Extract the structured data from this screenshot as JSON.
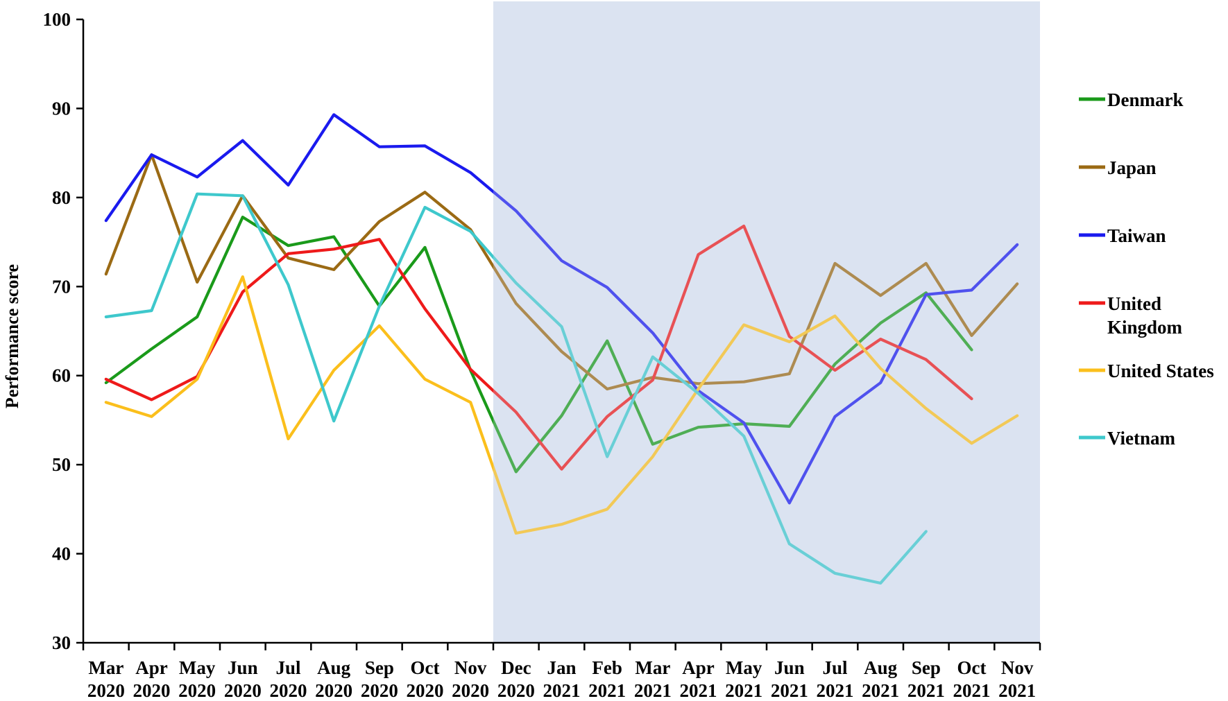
{
  "chart_data": {
    "type": "line",
    "title": "",
    "xlabel": "",
    "ylabel": "Performance score",
    "ylim": [
      30,
      100
    ],
    "yticks": [
      "30",
      "40",
      "50",
      "60",
      "70",
      "80",
      "90",
      "100"
    ],
    "grid": false,
    "legend_position": "right",
    "shaded_region": {
      "from": "Nov 2020",
      "to": "Nov 2021",
      "color": "#dce4f2"
    },
    "categories": [
      [
        "Mar",
        "2020"
      ],
      [
        "Apr",
        "2020"
      ],
      [
        "May",
        "2020"
      ],
      [
        "Jun",
        "2020"
      ],
      [
        "Jul",
        "2020"
      ],
      [
        "Aug",
        "2020"
      ],
      [
        "Sep",
        "2020"
      ],
      [
        "Oct",
        "2020"
      ],
      [
        "Nov",
        "2020"
      ],
      [
        "Dec",
        "2020"
      ],
      [
        "Jan",
        "2021"
      ],
      [
        "Feb",
        "2021"
      ],
      [
        "Mar",
        "2021"
      ],
      [
        "Apr",
        "2021"
      ],
      [
        "May",
        "2021"
      ],
      [
        "Jun",
        "2021"
      ],
      [
        "Jul",
        "2021"
      ],
      [
        "Aug",
        "2021"
      ],
      [
        "Sep",
        "2021"
      ],
      [
        "Oct",
        "2021"
      ],
      [
        "Nov",
        "2021"
      ]
    ],
    "series": [
      {
        "name": "Denmark",
        "color": "#1a9a1a",
        "values": [
          59.2,
          63.0,
          66.6,
          77.8,
          74.6,
          75.6,
          67.8,
          74.4,
          60.6,
          49.2,
          55.5,
          63.9,
          52.3,
          54.2,
          54.6,
          54.3,
          61.3,
          65.9,
          69.3,
          62.9,
          null
        ]
      },
      {
        "name": "Japan",
        "color": "#9b6a14",
        "values": [
          71.4,
          84.8,
          70.5,
          80.2,
          73.2,
          71.9,
          77.3,
          80.6,
          76.4,
          68.1,
          62.7,
          58.5,
          59.8,
          59.1,
          59.3,
          60.2,
          72.6,
          69.0,
          72.6,
          64.5,
          70.3
        ]
      },
      {
        "name": "Taiwan",
        "color": "#1a1aee",
        "values": [
          77.4,
          84.8,
          82.3,
          86.4,
          81.4,
          89.3,
          85.7,
          85.8,
          82.8,
          78.5,
          72.9,
          69.9,
          64.8,
          58.3,
          54.7,
          45.7,
          55.4,
          59.2,
          69.1,
          69.6,
          74.7
        ]
      },
      {
        "name": "United Kingdom",
        "color": "#ee1a1a",
        "values": [
          59.6,
          57.3,
          59.9,
          69.4,
          73.7,
          74.2,
          75.3,
          67.5,
          60.7,
          55.9,
          49.5,
          55.4,
          59.5,
          73.6,
          76.8,
          64.4,
          60.6,
          64.1,
          61.8,
          57.4,
          null
        ]
      },
      {
        "name": "United States",
        "color": "#fbbf1c",
        "values": [
          57.0,
          55.4,
          59.6,
          71.1,
          52.9,
          60.6,
          65.6,
          59.6,
          57.0,
          42.3,
          43.3,
          45.0,
          50.9,
          58.5,
          65.7,
          63.8,
          66.7,
          60.8,
          56.3,
          52.4,
          55.5
        ]
      },
      {
        "name": "Vietnam",
        "color": "#3ec8cc",
        "values": [
          66.6,
          67.3,
          80.4,
          80.2,
          70.2,
          54.9,
          67.8,
          78.9,
          76.2,
          70.4,
          65.5,
          50.9,
          62.1,
          58.0,
          53.2,
          41.1,
          37.8,
          36.7,
          42.5,
          null,
          null
        ]
      }
    ]
  }
}
